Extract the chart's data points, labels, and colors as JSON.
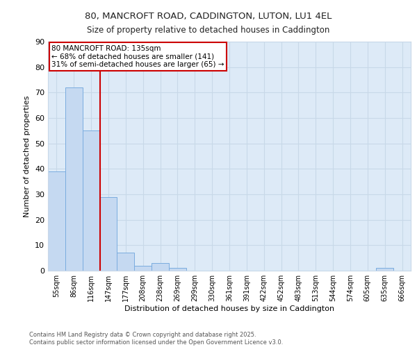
{
  "title_line1": "80, MANCROFT ROAD, CADDINGTON, LUTON, LU1 4EL",
  "title_line2": "Size of property relative to detached houses in Caddington",
  "xlabel": "Distribution of detached houses by size in Caddington",
  "ylabel": "Number of detached properties",
  "categories": [
    "55sqm",
    "86sqm",
    "116sqm",
    "147sqm",
    "177sqm",
    "208sqm",
    "238sqm",
    "269sqm",
    "299sqm",
    "330sqm",
    "361sqm",
    "391sqm",
    "422sqm",
    "452sqm",
    "483sqm",
    "513sqm",
    "544sqm",
    "574sqm",
    "605sqm",
    "635sqm",
    "666sqm"
  ],
  "values": [
    39,
    72,
    55,
    29,
    7,
    2,
    3,
    1,
    0,
    0,
    0,
    0,
    0,
    0,
    0,
    0,
    0,
    0,
    0,
    1,
    0
  ],
  "bar_color": "#c5d9f1",
  "bar_edge_color": "#7aacdf",
  "grid_color": "#c8d8e8",
  "background_color": "#ddeaf7",
  "vline_x_index": 2,
  "vline_color": "#cc0000",
  "annotation_text": "80 MANCROFT ROAD: 135sqm\n← 68% of detached houses are smaller (141)\n31% of semi-detached houses are larger (65) →",
  "annotation_box_color": "#cc0000",
  "ylim": [
    0,
    90
  ],
  "yticks": [
    0,
    10,
    20,
    30,
    40,
    50,
    60,
    70,
    80,
    90
  ],
  "footer": "Contains HM Land Registry data © Crown copyright and database right 2025.\nContains public sector information licensed under the Open Government Licence v3.0."
}
